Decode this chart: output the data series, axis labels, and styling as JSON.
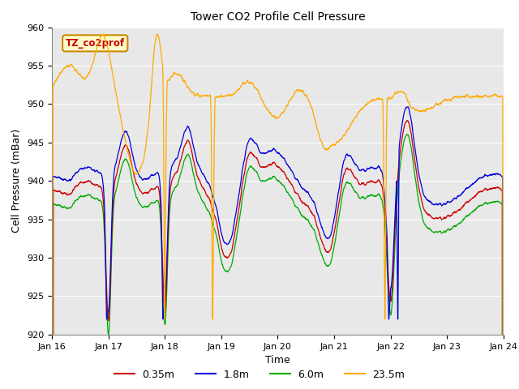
{
  "title": "Tower CO2 Profile Cell Pressure",
  "xlabel": "Time",
  "ylabel": "Cell Pressure (mBar)",
  "ylim": [
    920,
    960
  ],
  "xlim": [
    0,
    8
  ],
  "fig_facecolor": "#ffffff",
  "plot_bg_color": "#e8e8e8",
  "colors": {
    "0.35m": "#cc0000",
    "1.8m": "#0000dd",
    "6.0m": "#00aa00",
    "23.5m": "#ffaa00"
  },
  "legend_label": "TZ_co2prof",
  "legend_bg": "#ffffcc",
  "legend_border": "#cc8800",
  "xtick_labels": [
    "Jan 16",
    "Jan 17",
    "Jan 18",
    "Jan 19",
    "Jan 20",
    "Jan 21",
    "Jan 22",
    "Jan 23",
    "Jan 24"
  ],
  "ytick_values": [
    920,
    925,
    930,
    935,
    940,
    945,
    950,
    955,
    960
  ],
  "figsize": [
    6.4,
    4.8
  ],
  "dpi": 100
}
